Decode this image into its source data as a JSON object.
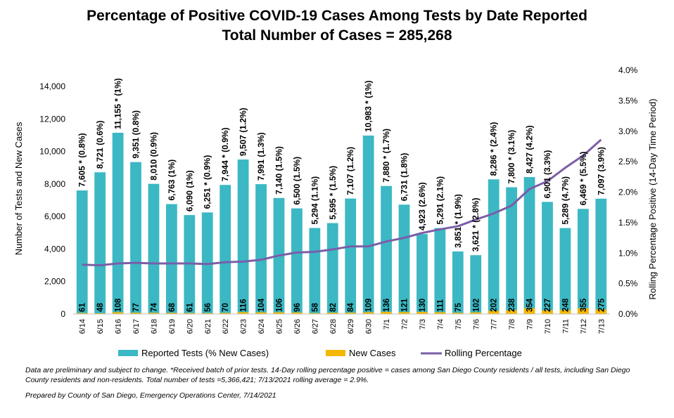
{
  "chart_data": {
    "type": "bar",
    "title": "Percentage of Positive COVID-19 Cases Among Tests by Date Reported",
    "subtitle": "Total Number of Cases = 285,268",
    "ylabel": "Number of Tests and New Cases",
    "y2label": "Rolling Percentage Positive (14-Day Time Period)",
    "ylim": [
      0,
      15000
    ],
    "y2lim": [
      0,
      4.0
    ],
    "yticks": [
      "0",
      "2,000",
      "4,000",
      "6,000",
      "8,000",
      "10,000",
      "12,000",
      "14,000"
    ],
    "y2ticks": [
      "0.0%",
      "0.5%",
      "1.0%",
      "1.5%",
      "2.0%",
      "2.5%",
      "3.0%",
      "3.5%",
      "4.0%"
    ],
    "categories": [
      "6/14",
      "6/15",
      "6/16",
      "6/17",
      "6/18",
      "6/19",
      "6/20",
      "6/21",
      "6/22",
      "6/23",
      "6/24",
      "6/25",
      "6/26",
      "6/27",
      "6/28",
      "6/29",
      "6/30",
      "7/1",
      "7/2",
      "7/3",
      "7/4",
      "7/5",
      "7/6",
      "7/7",
      "7/8",
      "7/9",
      "7/10",
      "7/11",
      "7/12",
      "7/13"
    ],
    "series": [
      {
        "name": "Reported Tests (% New Cases)",
        "color": "#3bb8c3",
        "values": [
          7605,
          8721,
          11155,
          9351,
          8010,
          6763,
          6090,
          6251,
          7944,
          9507,
          7991,
          7140,
          6500,
          5294,
          5595,
          7107,
          10983,
          7880,
          6731,
          4923,
          5291,
          3851,
          3621,
          8286,
          7800,
          8427,
          6901,
          5289,
          6469,
          7097
        ],
        "labels": [
          "7,605 * (0.8%)",
          "8,721 (0.6%)",
          "11,155 * (1%)",
          "9,351 (0.8%)",
          "8,010 (0.9%)",
          "6,763 (1%)",
          "6,090 (1%)",
          "6,251 * (0.9%)",
          "7,944 * (0.9%)",
          "9,507 (1.2%)",
          "7,991 (1.3%)",
          "7,140 (1.5%)",
          "6,500 (1.5%)",
          "5,294 (1.1%)",
          "5,595 * (1.5%)",
          "7,107 (1.2%)",
          "10,983 * (1%)",
          "7,880 * (1.7%)",
          "6,731 (1.8%)",
          "4,923 (2.6%)",
          "5,291 (2.1%)",
          "3,851 * (1.9%)",
          "3,621 * (2.8%)",
          "8,286 * (2.4%)",
          "7,800 * (3.1%)",
          "8,427 (4.2%)",
          "6,901 (3.3%)",
          "5,289 (4.7%)",
          "6,469 * (5.5%)",
          "7,097 (3.9%)"
        ]
      },
      {
        "name": "New Cases",
        "color": "#f5b800",
        "values": [
          61,
          48,
          108,
          77,
          74,
          68,
          61,
          56,
          70,
          116,
          104,
          106,
          96,
          58,
          82,
          84,
          109,
          136,
          121,
          130,
          111,
          75,
          102,
          202,
          238,
          354,
          227,
          248,
          355,
          275
        ],
        "labels": [
          "61",
          "48",
          "108",
          "77",
          "74",
          "68",
          "61",
          "56",
          "70",
          "116",
          "104",
          "106",
          "96",
          "58",
          "82",
          "84",
          "109",
          "136",
          "121",
          "130",
          "111",
          "75",
          "102",
          "202",
          "238",
          "354",
          "227",
          "248",
          "355",
          "275"
        ]
      },
      {
        "name": "Rolling Percentage",
        "color": "#7a5ea8",
        "axis": "right",
        "values": [
          0.81,
          0.8,
          0.83,
          0.84,
          0.83,
          0.83,
          0.83,
          0.82,
          0.85,
          0.86,
          0.89,
          0.96,
          1.01,
          1.02,
          1.06,
          1.11,
          1.11,
          1.19,
          1.25,
          1.33,
          1.39,
          1.44,
          1.55,
          1.65,
          1.78,
          2.05,
          2.18,
          2.4,
          2.6,
          2.86
        ]
      }
    ],
    "legend": "bottom",
    "grid": false
  },
  "notes": "Data are preliminary and subject to change. *Received batch of prior tests. 14-Day rolling percentage positive = cases among San Diego County residents / all tests, including San Diego County residents and non-residents. Total number of tests =5,366,421; 7/13/2021 rolling average = 2.9%.",
  "prepared_by": "Prepared by County of San Diego, Emergency Operations Center, 7/14/2021"
}
